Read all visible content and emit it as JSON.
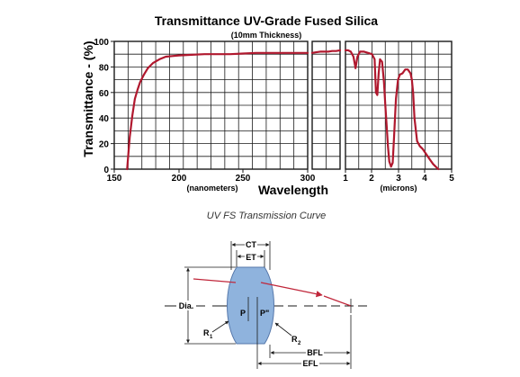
{
  "chart_data": {
    "type": "line",
    "title": "Transmittance UV-Grade Fused Silica",
    "subtitle": "(10mm Thickness)",
    "ylabel": "Transmittance - (%)",
    "xlabel": "Wavelength",
    "ylim": [
      0,
      100
    ],
    "yticks": [
      "0",
      "20",
      "40",
      "60",
      "80",
      "100"
    ],
    "grid": true,
    "panels": [
      {
        "unit_label": "(nanometers)",
        "xlim": [
          150,
          300
        ],
        "xticks": [
          "150",
          "200",
          "250",
          "300"
        ],
        "series": [
          {
            "color": "#b0182e",
            "x": [
              160,
              162,
              164,
              166,
              168,
              170,
              173,
              176,
              180,
              185,
              190,
              195,
              200,
              210,
              220,
              230,
              240,
              250,
              260,
              270,
              280,
              290,
              300
            ],
            "y": [
              0,
              25,
              42,
              55,
              62,
              68,
              74,
              79,
              83,
              86,
              88,
              88.5,
              89,
              89.5,
              90,
              90,
              90,
              90.5,
              91,
              91,
              91,
              91,
              91
            ]
          }
        ]
      },
      {
        "unit_label": "",
        "xlim": [
          300,
          1000
        ],
        "xticks": [],
        "series": [
          {
            "color": "#b0182e",
            "x": [
              300,
              400,
              500,
              600,
              700,
              800,
              900,
              1000
            ],
            "y": [
              91,
              91.5,
              92,
              92,
              92,
              92.5,
              92.5,
              93
            ]
          }
        ]
      },
      {
        "unit_label": "(microns)",
        "xlim": [
          1,
          5
        ],
        "xticks": [
          "1",
          "2",
          "3",
          "4",
          "5"
        ],
        "series": [
          {
            "color": "#b0182e",
            "x": [
              1,
              1.1,
              1.2,
              1.3,
              1.38,
              1.45,
              1.55,
              1.7,
              1.85,
              2.0,
              2.1,
              2.15,
              2.2,
              2.25,
              2.3,
              2.38,
              2.45,
              2.5,
              2.55,
              2.6,
              2.65,
              2.72,
              2.78,
              2.83,
              2.9,
              2.98,
              3.05,
              3.15,
              3.25,
              3.35,
              3.45,
              3.5,
              3.55,
              3.6,
              3.7,
              3.8,
              3.9,
              4.0,
              4.1,
              4.2,
              4.3,
              4.4,
              4.5
            ],
            "y": [
              93,
              93,
              92,
              88,
              79,
              88,
              92,
              92,
              91,
              90,
              86,
              60,
              58,
              75,
              86,
              84,
              68,
              50,
              35,
              18,
              6,
              2,
              5,
              25,
              55,
              70,
              74,
              75,
              78,
              78,
              75,
              70,
              60,
              40,
              22,
              18,
              16,
              13,
              10,
              7,
              4,
              2,
              0
            ]
          }
        ]
      }
    ],
    "caption": "UV FS Transmission Curve"
  },
  "diagram": {
    "labels": {
      "ct": "CT",
      "et": "ET",
      "dia": "Dia.",
      "r1": "R",
      "r1_sub": "1",
      "r2": "R",
      "r2_sub": "2",
      "p": "P",
      "p_prime": "P\"",
      "bfl": "BFL",
      "efl": "EFL"
    }
  },
  "colors": {
    "curve": "#b0182e",
    "lens_fill": "#8fb3dd",
    "lens_edge": "#5577aa",
    "ray": "#c0263a",
    "ink": "#1a1a1a"
  }
}
